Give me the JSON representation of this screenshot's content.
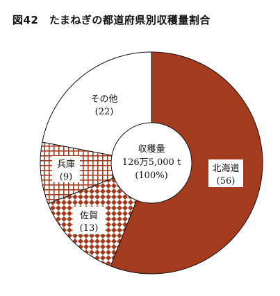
{
  "chart_data": {
    "type": "pie",
    "title": "図42　たまねぎの都道府県別収穫量割合",
    "center": {
      "label": "収穫量",
      "value": "126万5,000 t",
      "percent": "(100%)"
    },
    "slices": [
      {
        "name": "北海道",
        "value": 56,
        "value_label": "(56)",
        "color": "#a33c1e",
        "pattern": "solid"
      },
      {
        "name": "佐賀",
        "value": 13,
        "value_label": "(13)",
        "color": "#a33c1e",
        "pattern": "checker"
      },
      {
        "name": "",
        "value": 0,
        "value_label": "",
        "color": "#ffffff",
        "pattern": "plain"
      },
      {
        "name": "兵庫",
        "value": 9,
        "value_label": "(9)",
        "color": "#a33c1e",
        "pattern": "grid"
      },
      {
        "name": "その他",
        "value": 22,
        "value_label": "(22)",
        "color": "#ffffff",
        "pattern": "plain"
      }
    ]
  }
}
